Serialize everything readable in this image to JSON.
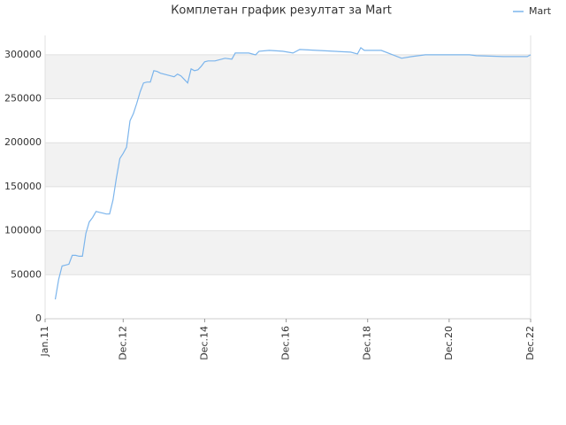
{
  "chart_data": {
    "type": "line",
    "title": "Комплетан график резултат за Mart",
    "x": [
      "2011-04",
      "2011-05",
      "2011-06",
      "2011-07",
      "2011-08",
      "2011-09",
      "2011-10",
      "2011-11",
      "2011-12",
      "2012-01",
      "2012-02",
      "2012-03",
      "2012-04",
      "2012-05",
      "2012-06",
      "2012-07",
      "2012-08",
      "2012-09",
      "2012-10",
      "2012-11",
      "2012-12",
      "2013-01",
      "2013-02",
      "2013-03",
      "2013-04",
      "2013-05",
      "2013-06",
      "2013-07",
      "2013-08",
      "2013-09",
      "2013-10",
      "2013-11",
      "2013-12",
      "2014-01",
      "2014-02",
      "2014-03",
      "2014-04",
      "2014-05",
      "2014-06",
      "2014-07",
      "2014-08",
      "2014-09",
      "2014-10",
      "2014-11",
      "2014-12",
      "2015-01",
      "2015-02",
      "2015-03",
      "2015-04",
      "2015-06",
      "2015-08",
      "2015-09",
      "2016-01",
      "2016-03",
      "2016-04",
      "2016-07",
      "2016-11",
      "2017-02",
      "2017-04",
      "2017-09",
      "2018-02",
      "2018-07",
      "2018-09",
      "2018-10",
      "2018-11",
      "2019-04",
      "2019-10",
      "2020-01",
      "2020-05",
      "2021-06",
      "2021-08",
      "2022-04",
      "2022-11",
      "2022-12"
    ],
    "series": [
      {
        "name": "Mart",
        "color": "#7cb5ec",
        "values": [
          22000,
          45000,
          60000,
          61000,
          62000,
          72000,
          72000,
          71000,
          71000,
          97000,
          110000,
          115000,
          122000,
          121000,
          120000,
          119000,
          119000,
          135000,
          160000,
          182000,
          188000,
          195000,
          225000,
          233000,
          245000,
          258000,
          268000,
          269000,
          269000,
          282000,
          281000,
          279000,
          278000,
          277000,
          276000,
          275000,
          278000,
          276000,
          272000,
          268000,
          284000,
          282000,
          283000,
          287000,
          292000,
          293000,
          293000,
          293000,
          294000,
          296000,
          295000,
          302000,
          302000,
          300000,
          304000,
          305000,
          304000,
          302000,
          306000,
          305000,
          304000,
          303000,
          301000,
          308000,
          305000,
          305000,
          296000,
          298000,
          300000,
          300000,
          299000,
          298000,
          298000,
          300000
        ]
      }
    ],
    "xlim": [
      "2011-01",
      "2022-12"
    ],
    "xticks": [
      {
        "value": "2011-01",
        "label": "Jan.11"
      },
      {
        "value": "2012-12",
        "label": "Dec.12"
      },
      {
        "value": "2014-12",
        "label": "Dec.14"
      },
      {
        "value": "2016-12",
        "label": "Dec.16"
      },
      {
        "value": "2018-12",
        "label": "Dec.18"
      },
      {
        "value": "2020-12",
        "label": "Dec.20"
      },
      {
        "value": "2022-12",
        "label": "Dec.22"
      }
    ],
    "ylim": [
      0,
      322000
    ],
    "yticks": [
      0,
      50000,
      100000,
      150000,
      200000,
      250000,
      300000
    ],
    "grid": true,
    "legend": "top-right"
  }
}
